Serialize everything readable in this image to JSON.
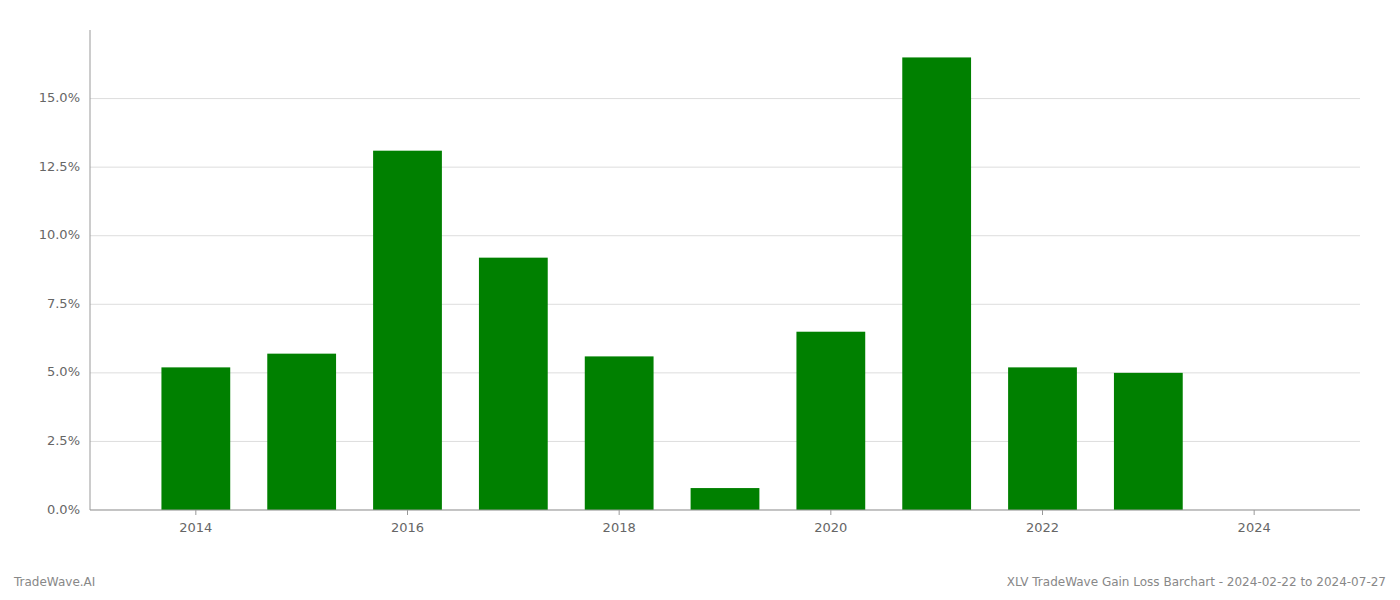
{
  "chart_data": {
    "type": "bar",
    "x": [
      2014,
      2015,
      2016,
      2017,
      2018,
      2019,
      2020,
      2021,
      2022,
      2023,
      2024
    ],
    "values": [
      0.052,
      0.057,
      0.131,
      0.092,
      0.056,
      0.008,
      0.065,
      0.165,
      0.052,
      0.05,
      0.0
    ],
    "color": "#008000",
    "xlim": [
      2013.0,
      2025.0
    ],
    "xticks": [
      2014,
      2016,
      2018,
      2020,
      2022,
      2024
    ],
    "ylim": [
      0,
      0.175
    ],
    "yticks": [
      {
        "value": 0.0,
        "label": "0.0%"
      },
      {
        "value": 0.025,
        "label": "2.5%"
      },
      {
        "value": 0.05,
        "label": "5.0%"
      },
      {
        "value": 0.075,
        "label": "7.5%"
      },
      {
        "value": 0.1,
        "label": "10.0%"
      },
      {
        "value": 0.125,
        "label": "12.5%"
      },
      {
        "value": 0.15,
        "label": "15.0%"
      }
    ],
    "grid": true,
    "annotations": [
      "TradeWave.AI",
      "XLV TradeWave Gain Loss Barchart - 2024-02-22 to 2024-07-27"
    ]
  }
}
